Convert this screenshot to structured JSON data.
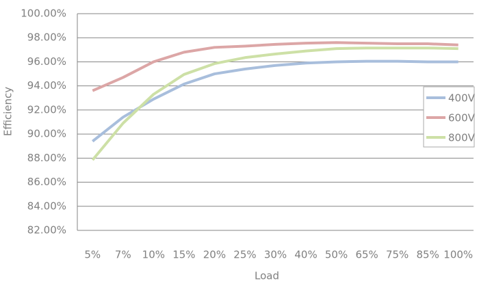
{
  "chart_data": {
    "type": "line",
    "x_label": "Load",
    "y_label": "Efficiency",
    "categories": [
      "5%",
      "7%",
      "10%",
      "15%",
      "20%",
      "25%",
      "30%",
      "40%",
      "50%",
      "65%",
      "75%",
      "85%",
      "100%"
    ],
    "series": [
      {
        "name": "400V",
        "color": "#a8bedc",
        "values": [
          89.4,
          91.4,
          92.9,
          94.15,
          95.0,
          95.4,
          95.7,
          95.9,
          96.0,
          96.05,
          96.05,
          96.0,
          96.0
        ]
      },
      {
        "name": "600V",
        "color": "#dca6a6",
        "values": [
          93.6,
          94.7,
          96.0,
          96.8,
          97.2,
          97.3,
          97.45,
          97.55,
          97.6,
          97.55,
          97.5,
          97.5,
          97.4
        ]
      },
      {
        "name": "800V",
        "color": "#cde0a6",
        "values": [
          87.85,
          90.9,
          93.3,
          94.95,
          95.85,
          96.35,
          96.65,
          96.9,
          97.1,
          97.15,
          97.15,
          97.15,
          97.1
        ]
      }
    ],
    "ylim": [
      82,
      100
    ],
    "yticks": [
      {
        "value": 82,
        "label": "82.00%"
      },
      {
        "value": 84,
        "label": "84.00%"
      },
      {
        "value": 86,
        "label": "86.00%"
      },
      {
        "value": 88,
        "label": "88.00%"
      },
      {
        "value": 90,
        "label": "90.00%"
      },
      {
        "value": 92,
        "label": "92.00%"
      },
      {
        "value": 94,
        "label": "94.00%"
      },
      {
        "value": 96,
        "label": "96.00%"
      },
      {
        "value": 98,
        "label": "98.00%"
      },
      {
        "value": 100,
        "label": "100.00%"
      }
    ],
    "grid": true,
    "legend": "right"
  }
}
